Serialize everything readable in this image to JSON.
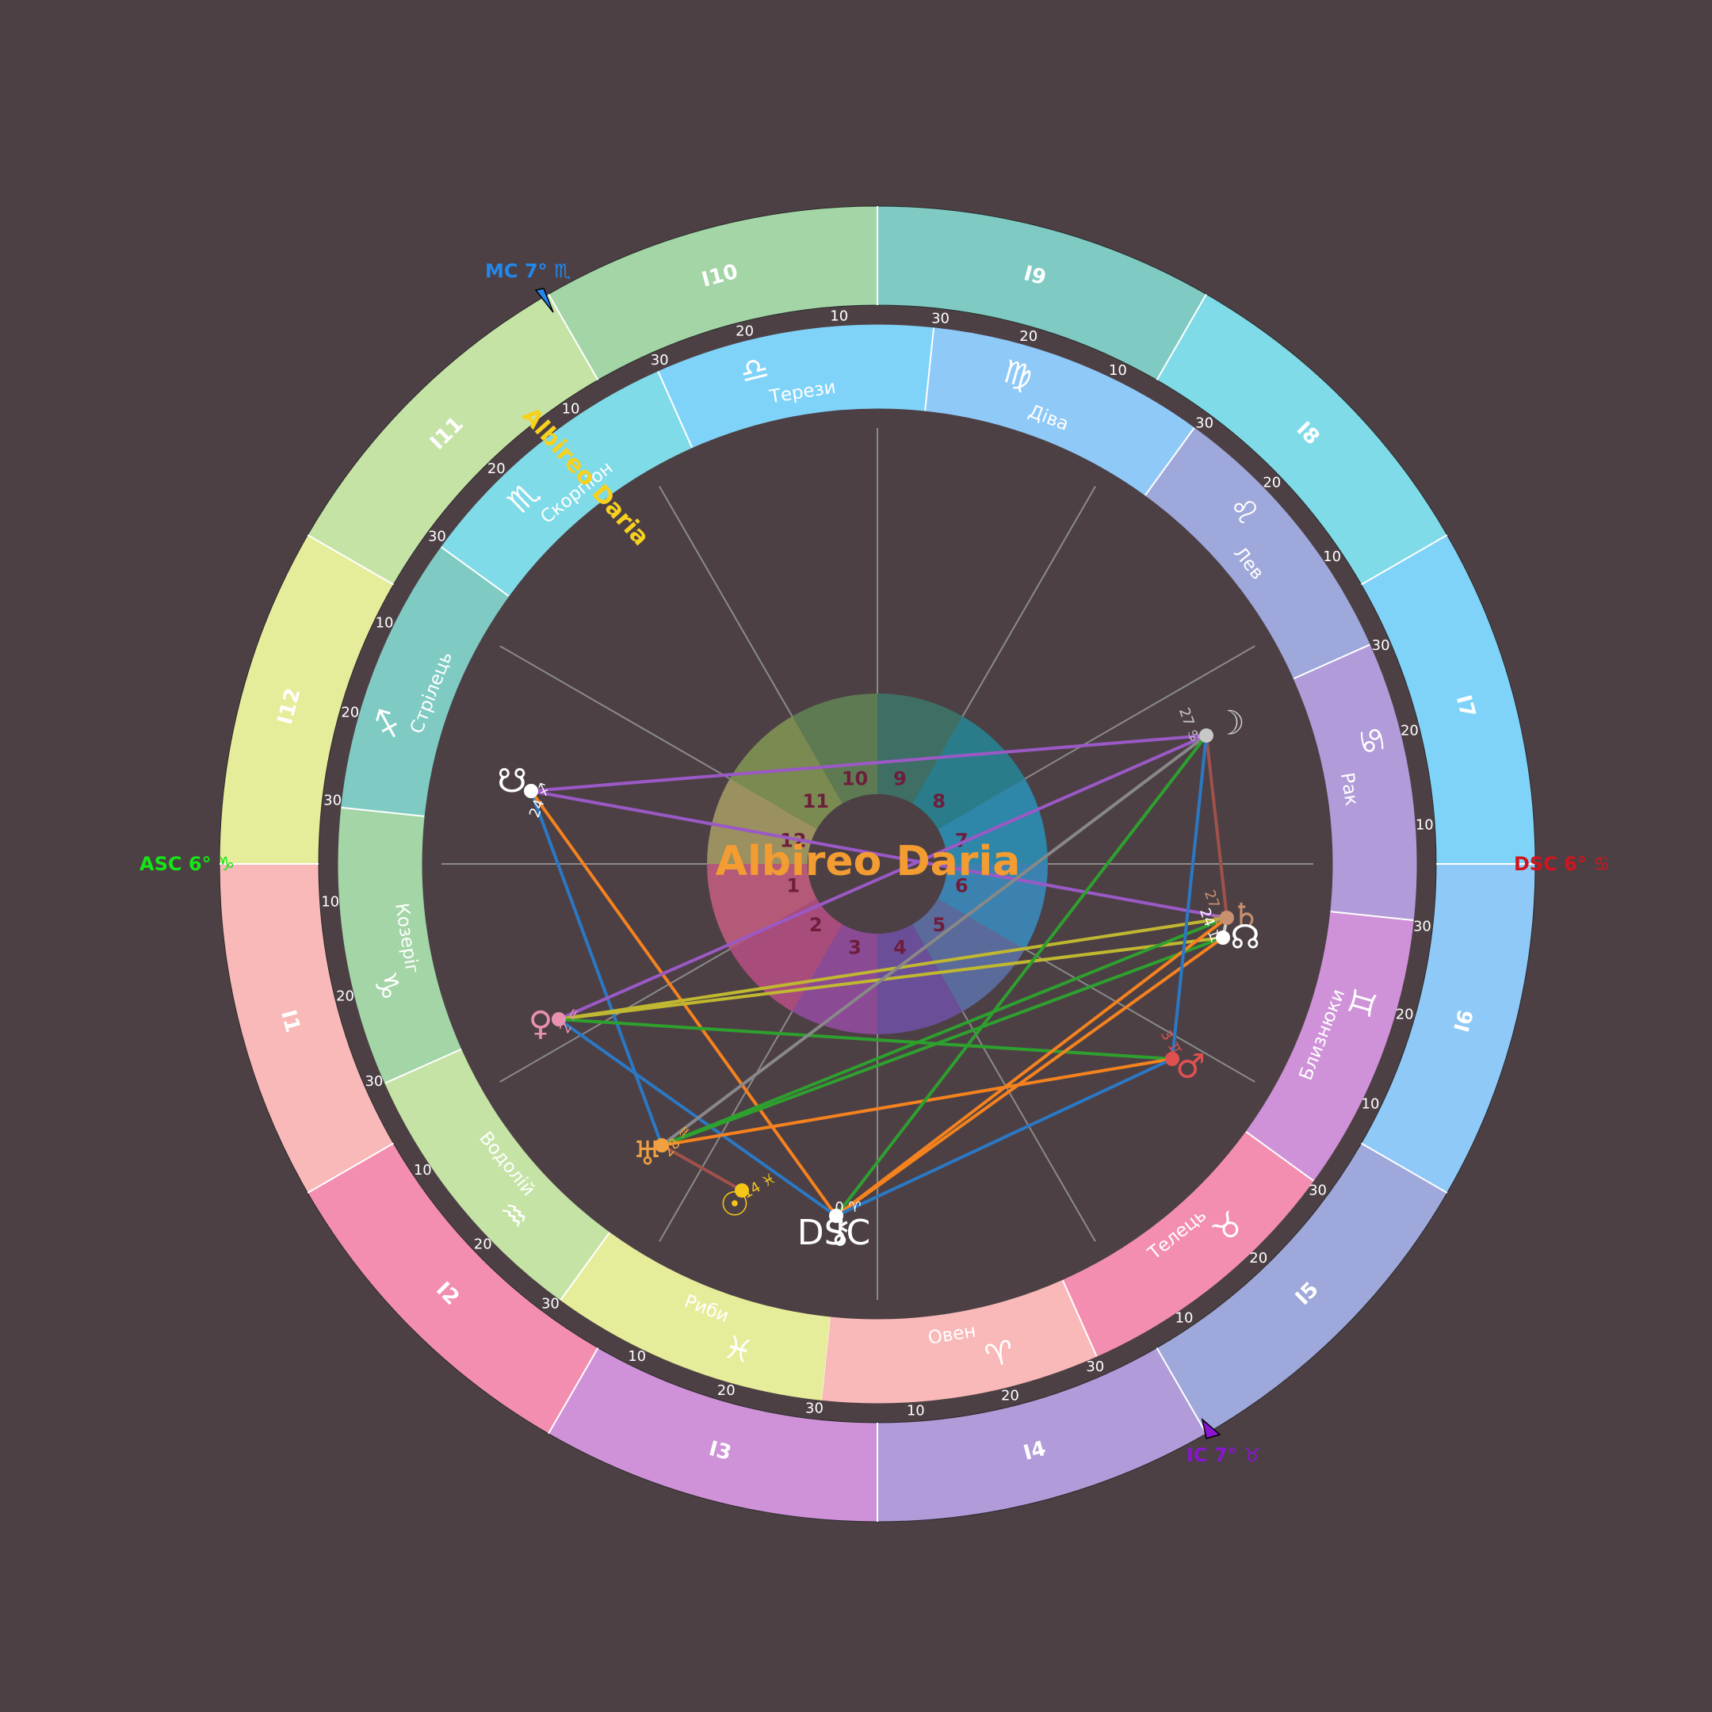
{
  "name": "Albireo Daria",
  "colors": {
    "background": "#4c4045",
    "title": "#f39c32",
    "arc_name": "#f7d11e",
    "house_number": "#6e1e3c",
    "asc": "#15e615",
    "dsc": "#d2141e",
    "mc": "#2288ee",
    "ic": "#8a14d2"
  },
  "angles": {
    "asc": "ASC 6° ♑",
    "dsc": "DSC 6° ♋",
    "mc": "MC 7° ♏",
    "ic": "IC 7° ♉"
  },
  "outer_houses": [
    {
      "label": "I1",
      "color": "#f9b9b8"
    },
    {
      "label": "I2",
      "color": "#f48eb0"
    },
    {
      "label": "I3",
      "color": "#cf92d8"
    },
    {
      "label": "I4",
      "color": "#b19cd9"
    },
    {
      "label": "I5",
      "color": "#9fa8da"
    },
    {
      "label": "I6",
      "color": "#8fc9f8"
    },
    {
      "label": "I7",
      "color": "#80d3f8"
    },
    {
      "label": "I8",
      "color": "#7fdbe8"
    },
    {
      "label": "I9",
      "color": "#7fcbc3"
    },
    {
      "label": "I10",
      "color": "#a3d5a6"
    },
    {
      "label": "I11",
      "color": "#c6e3a6"
    },
    {
      "label": "I12",
      "color": "#e6ed9a"
    }
  ],
  "signs": [
    {
      "name": "Овен",
      "glyph": "♈",
      "color": "#f9b9b8"
    },
    {
      "name": "Телець",
      "glyph": "♉",
      "color": "#f48eb0"
    },
    {
      "name": "Близнюки",
      "glyph": "♊",
      "color": "#cf92d8"
    },
    {
      "name": "Рак",
      "glyph": "♋",
      "color": "#b19cd9"
    },
    {
      "name": "Лев",
      "glyph": "♌",
      "color": "#9fa8da"
    },
    {
      "name": "Діва",
      "glyph": "♍",
      "color": "#8fc9f8"
    },
    {
      "name": "Терези",
      "glyph": "♎",
      "color": "#80d3f8"
    },
    {
      "name": "Скорпіон",
      "glyph": "♏",
      "color": "#7fdbe8"
    },
    {
      "name": "Стрілець",
      "glyph": "♐",
      "color": "#7fcbc3"
    },
    {
      "name": "Козеріг",
      "glyph": "♑",
      "color": "#a3d5a6"
    },
    {
      "name": "Водолій",
      "glyph": "♒",
      "color": "#c6e3a6"
    },
    {
      "name": "Риби",
      "glyph": "♓",
      "color": "#e6ed9a"
    }
  ],
  "degree_ticks": [
    "10",
    "20",
    "30"
  ],
  "inner_houses": [
    "1",
    "2",
    "3",
    "4",
    "5",
    "6",
    "7",
    "8",
    "9",
    "10",
    "11",
    "12"
  ],
  "planets": [
    {
      "id": "moon",
      "glyph": "☽",
      "degree": "27",
      "sign_glyph": "♋",
      "color": "#c8c8c8"
    },
    {
      "id": "saturn",
      "glyph": "♄",
      "degree": "27",
      "sign_glyph": "♊",
      "color": "#c8906e"
    },
    {
      "id": "node-north",
      "glyph": "☊",
      "degree": "24",
      "sign_glyph": "♊",
      "color": "#ffffff"
    },
    {
      "id": "mars",
      "glyph": "♂",
      "degree": "3",
      "sign_glyph": "♊",
      "color": "#e05050"
    },
    {
      "id": "node-south",
      "glyph": "☋",
      "degree": "24",
      "sign_glyph": "♐",
      "color": "#ffffff"
    },
    {
      "id": "venus",
      "glyph": "♀",
      "degree": "2",
      "sign_glyph": "♒",
      "color": "#e890b0"
    },
    {
      "id": "uranus",
      "glyph": "♅",
      "degree": "28",
      "sign_glyph": "♒",
      "color": "#f0a040"
    },
    {
      "id": "sun",
      "glyph": "☉",
      "degree": "14",
      "sign_glyph": "♓",
      "color": "#f5c518"
    },
    {
      "id": "chiron",
      "glyph": "⚷",
      "degree": "0",
      "sign_glyph": "♈",
      "color": "#ffffff"
    }
  ],
  "misc_label": "DSC",
  "aspects": [
    {
      "from": "node-south",
      "to": "moon",
      "color": "#9b59c6"
    },
    {
      "from": "node-south",
      "to": "saturn",
      "color": "#9b59c6"
    },
    {
      "from": "node-south",
      "to": "uranus",
      "color": "#2b78c4"
    },
    {
      "from": "node-south",
      "to": "chiron",
      "color": "#f5821e"
    },
    {
      "from": "venus",
      "to": "moon",
      "color": "#9b59c6"
    },
    {
      "from": "venus",
      "to": "saturn",
      "color": "#c0b830"
    },
    {
      "from": "venus",
      "to": "node-north",
      "color": "#c0b830"
    },
    {
      "from": "venus",
      "to": "mars",
      "color": "#2ea02e"
    },
    {
      "from": "venus",
      "to": "chiron",
      "color": "#2b78c4"
    },
    {
      "from": "uranus",
      "to": "moon",
      "color": "#888888"
    },
    {
      "from": "uranus",
      "to": "saturn",
      "color": "#2ea02e"
    },
    {
      "from": "uranus",
      "to": "node-north",
      "color": "#2ea02e"
    },
    {
      "from": "uranus",
      "to": "mars",
      "color": "#f5821e"
    },
    {
      "from": "uranus",
      "to": "sun",
      "color": "#a0524a"
    },
    {
      "from": "chiron",
      "to": "moon",
      "color": "#2ea02e"
    },
    {
      "from": "chiron",
      "to": "saturn",
      "color": "#f5821e"
    },
    {
      "from": "chiron",
      "to": "node-north",
      "color": "#f5821e"
    },
    {
      "from": "chiron",
      "to": "mars",
      "color": "#2b78c4"
    },
    {
      "from": "moon",
      "to": "saturn",
      "color": "#a0524a"
    },
    {
      "from": "moon",
      "to": "mars",
      "color": "#2b78c4"
    },
    {
      "from": "saturn",
      "to": "node-north",
      "color": "#cccccc"
    }
  ]
}
